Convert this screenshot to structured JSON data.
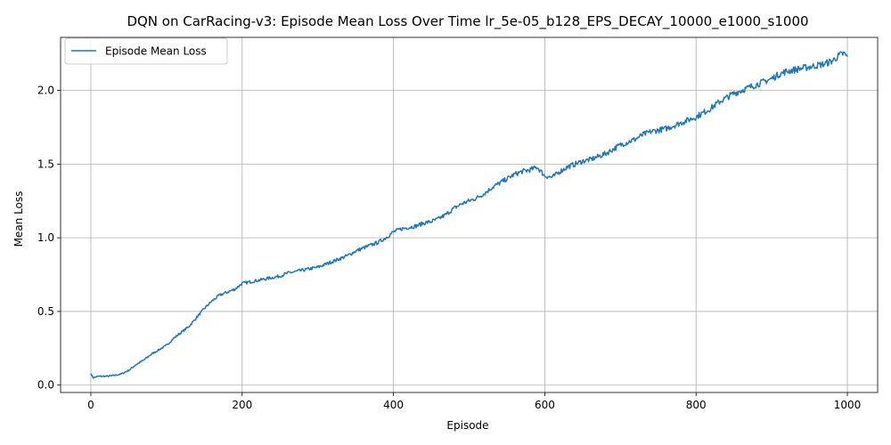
{
  "chart_data": {
    "type": "line",
    "title": "DQN on CarRacing-v3: Episode Mean Loss Over Time lr_5e-05_b128_EPS_DECAY_10000_e1000_s1000",
    "xlabel": "Episode",
    "ylabel": "Mean Loss",
    "xlim": [
      -40,
      1040
    ],
    "ylim": [
      -0.05,
      2.36
    ],
    "xticks": [
      0,
      200,
      400,
      600,
      800,
      1000
    ],
    "yticks": [
      0.0,
      0.5,
      1.0,
      1.5,
      2.0
    ],
    "xtick_labels": [
      "0",
      "200",
      "400",
      "600",
      "800",
      "1000"
    ],
    "ytick_labels": [
      "0.0",
      "0.5",
      "1.0",
      "1.5",
      "2.0"
    ],
    "grid": true,
    "legend_position": "upper-left",
    "series": [
      {
        "name": "Episode Mean Loss",
        "color": "#1f77b4",
        "x": [
          0,
          3,
          10,
          20,
          30,
          40,
          50,
          60,
          70,
          80,
          90,
          100,
          110,
          120,
          130,
          140,
          150,
          160,
          170,
          180,
          190,
          200,
          210,
          220,
          230,
          240,
          250,
          260,
          270,
          280,
          290,
          300,
          310,
          320,
          330,
          340,
          350,
          360,
          370,
          380,
          390,
          400,
          410,
          420,
          430,
          440,
          450,
          460,
          470,
          480,
          490,
          500,
          510,
          520,
          530,
          540,
          550,
          560,
          570,
          580,
          590,
          600,
          610,
          620,
          630,
          640,
          650,
          660,
          670,
          680,
          690,
          700,
          710,
          720,
          730,
          740,
          750,
          760,
          770,
          780,
          790,
          800,
          810,
          820,
          830,
          840,
          850,
          860,
          870,
          880,
          890,
          900,
          910,
          920,
          930,
          940,
          950,
          960,
          970,
          980,
          990,
          995,
          1000
        ],
        "y": [
          0.08,
          0.05,
          0.06,
          0.06,
          0.065,
          0.075,
          0.1,
          0.14,
          0.17,
          0.21,
          0.24,
          0.27,
          0.32,
          0.36,
          0.4,
          0.46,
          0.52,
          0.57,
          0.61,
          0.63,
          0.65,
          0.69,
          0.7,
          0.71,
          0.72,
          0.73,
          0.74,
          0.76,
          0.77,
          0.78,
          0.79,
          0.8,
          0.82,
          0.84,
          0.86,
          0.88,
          0.91,
          0.93,
          0.95,
          0.97,
          1.0,
          1.04,
          1.06,
          1.07,
          1.08,
          1.1,
          1.11,
          1.13,
          1.16,
          1.2,
          1.23,
          1.25,
          1.27,
          1.3,
          1.34,
          1.37,
          1.4,
          1.43,
          1.45,
          1.46,
          1.48,
          1.42,
          1.41,
          1.45,
          1.48,
          1.5,
          1.52,
          1.53,
          1.55,
          1.57,
          1.6,
          1.63,
          1.65,
          1.67,
          1.7,
          1.72,
          1.73,
          1.74,
          1.76,
          1.78,
          1.8,
          1.82,
          1.85,
          1.88,
          1.92,
          1.95,
          1.98,
          2.0,
          2.02,
          2.04,
          2.06,
          2.08,
          2.11,
          2.13,
          2.14,
          2.15,
          2.16,
          2.17,
          2.18,
          2.2,
          2.24,
          2.25,
          2.23
        ]
      }
    ]
  }
}
